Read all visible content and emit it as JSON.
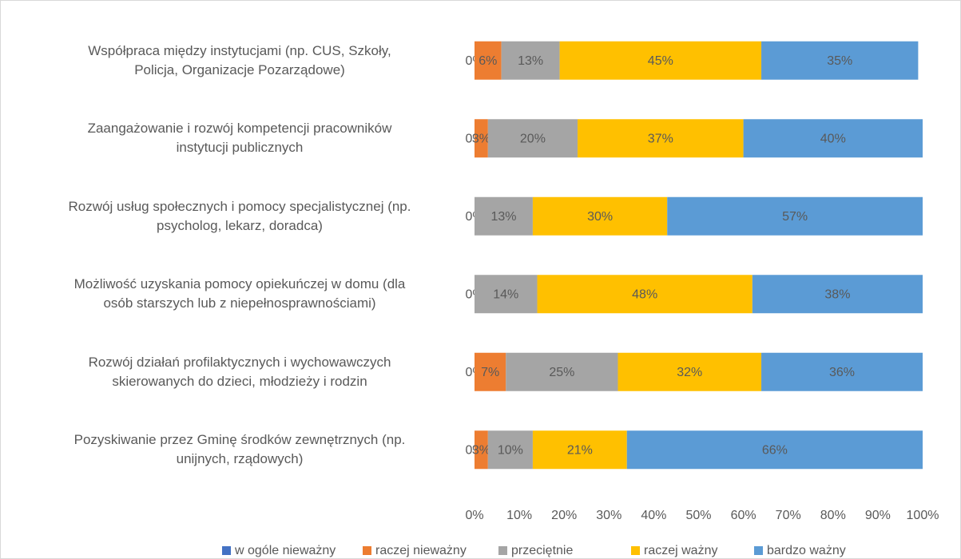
{
  "chart_data": {
    "type": "stacked-bar-horizontal",
    "categories": [
      "Współpraca między instytucjami (np. CUS, Szkoły,\nPolicja, Organizacje Pozarządowe)",
      "Zaangażowanie i rozwój kompetencji pracowników\ninstytucji publicznych",
      "Rozwój usług społecznych i pomocy specjalistycznej (np.\npsycholog, lekarz, doradca)",
      "Możliwość uzyskania pomocy opiekuńczej w domu (dla\nosób starszych lub z niepełnosprawnościami)",
      "Rozwój działań profilaktycznych i wychowawczych\nskierowanych do dzieci, młodzieży i rodzin",
      "Pozyskiwanie przez Gminę środków zewnętrznych (np.\nunijnych, rządowych)"
    ],
    "series": [
      {
        "name": "w ogóle nieważny",
        "color": "#4472c4",
        "values": [
          0,
          0,
          0,
          0,
          0,
          0
        ],
        "value_labels": [
          "0%",
          "0%",
          "0%",
          "0%",
          "0%",
          "0%"
        ]
      },
      {
        "name": "raczej nieważny",
        "color": "#ed7d31",
        "values": [
          6,
          3,
          0,
          0,
          7,
          3
        ],
        "value_labels": [
          "6%",
          "3%",
          null,
          null,
          "7%",
          "3%"
        ]
      },
      {
        "name": "przeciętnie",
        "color": "#a5a5a5",
        "values": [
          13,
          20,
          13,
          14,
          25,
          10
        ],
        "value_labels": [
          "13%",
          "20%",
          "13%",
          "14%",
          "25%",
          "10%"
        ]
      },
      {
        "name": "raczej ważny",
        "color": "#ffc000",
        "values": [
          45,
          37,
          30,
          48,
          32,
          21
        ],
        "value_labels": [
          "45%",
          "37%",
          "30%",
          "48%",
          "32%",
          "21%"
        ]
      },
      {
        "name": "bardzo ważny",
        "color": "#5b9bd5",
        "values": [
          35,
          40,
          57,
          38,
          36,
          66
        ],
        "value_labels": [
          "35%",
          "40%",
          "57%",
          "38%",
          "36%",
          "66%"
        ]
      }
    ],
    "xlim": [
      0,
      100
    ],
    "xticks": [
      {
        "value": 0,
        "label": "0%"
      },
      {
        "value": 10,
        "label": "10%"
      },
      {
        "value": 20,
        "label": "20%"
      },
      {
        "value": 30,
        "label": "30%"
      },
      {
        "value": 40,
        "label": "40%"
      },
      {
        "value": 50,
        "label": "50%"
      },
      {
        "value": 60,
        "label": "60%"
      },
      {
        "value": 70,
        "label": "70%"
      },
      {
        "value": 80,
        "label": "80%"
      },
      {
        "value": 90,
        "label": "90%"
      },
      {
        "value": 100,
        "label": "100%"
      }
    ],
    "grid": false,
    "legend": "bottom"
  }
}
